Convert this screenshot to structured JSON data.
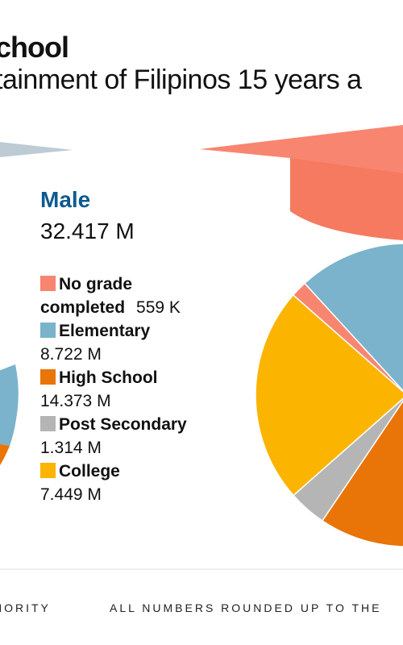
{
  "title": "chool",
  "subtitle": "tainment of Filipinos 15 years a",
  "panel": {
    "label": "Male",
    "total": "32.417 M"
  },
  "legend": [
    {
      "label_line1": "No grade",
      "label_line2": "completed",
      "value": "559 K",
      "color": "#F88570"
    },
    {
      "label_line1": "Elementary",
      "label_line2": "",
      "value": "8.722 M",
      "color": "#7AB3CB"
    },
    {
      "label_line1": "High School",
      "label_line2": "",
      "value": "14.373 M",
      "color": "#E97407"
    },
    {
      "label_line1": "Post Secondary",
      "label_line2": "",
      "value": "1.314 M",
      "color": "#B5B5B5"
    },
    {
      "label_line1": "College",
      "label_line2": "",
      "value": "7.449 M",
      "color": "#FBB400"
    }
  ],
  "footer": {
    "left": "HORITY",
    "right": "ALL NUMBERS ROUNDED UP TO THE"
  },
  "chart_data": {
    "type": "pie",
    "title": "",
    "series": [
      {
        "name": "Male",
        "total": 32.417,
        "unit": "M",
        "categories": [
          "No grade completed",
          "Elementary",
          "High School",
          "Post Secondary",
          "College"
        ],
        "values": [
          0.559,
          8.722,
          14.373,
          1.314,
          7.449
        ]
      }
    ],
    "colors": [
      "#F88570",
      "#7AB3CB",
      "#E97407",
      "#B5B5B5",
      "#FBB400"
    ]
  }
}
